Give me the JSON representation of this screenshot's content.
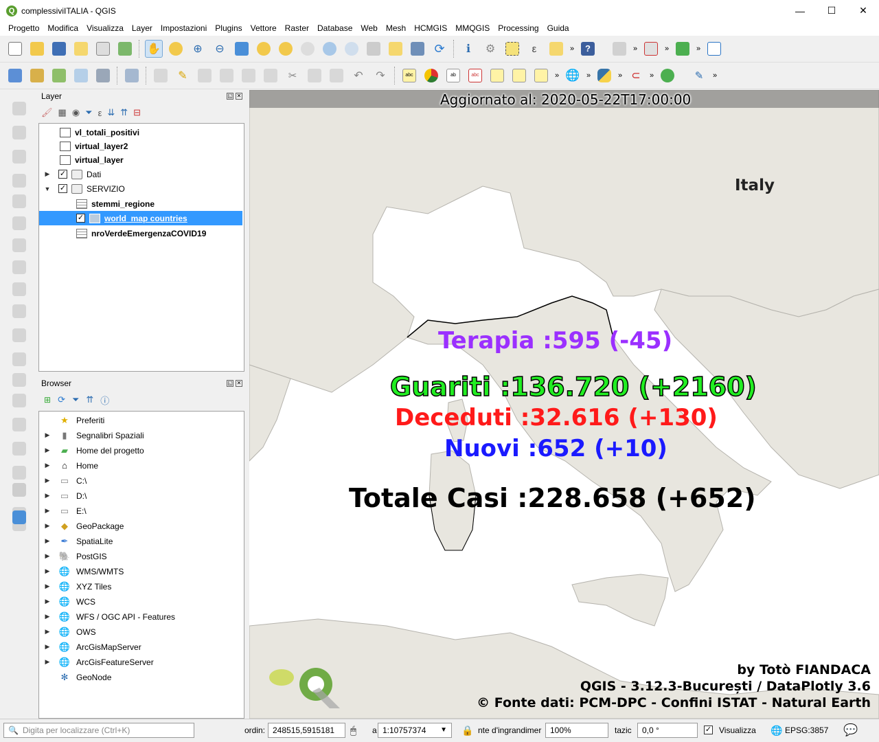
{
  "window": {
    "title": "complessiviITALIA - QGIS",
    "minimize": "—",
    "maximize": "☐",
    "close": "✕"
  },
  "menu": [
    "Progetto",
    "Modifica",
    "Visualizza",
    "Layer",
    "Impostazioni",
    "Plugins",
    "Vettore",
    "Raster",
    "Database",
    "Web",
    "Mesh",
    "HCMGIS",
    "MMQGIS",
    "Processing",
    "Guida"
  ],
  "layers_panel": {
    "title": "Layer",
    "rows": [
      {
        "name": "vl_totali_positivi",
        "checked": true
      },
      {
        "name": "virtual_layer2",
        "checked": true
      },
      {
        "name": "virtual_layer",
        "checked": true
      },
      {
        "name": "Dati",
        "checked": true
      },
      {
        "name": "SERVIZIO",
        "checked": true
      },
      {
        "name": "stemmi_regione"
      },
      {
        "name": "world_map countries",
        "checked": true
      },
      {
        "name": "nroVerdeEmergenzaCOVID19"
      }
    ]
  },
  "browser_panel": {
    "title": "Browser",
    "items": [
      "Preferiti",
      "Segnalibri Spaziali",
      "Home del progetto",
      "Home",
      "C:\\",
      "D:\\",
      "E:\\",
      "GeoPackage",
      "SpatiaLite",
      "PostGIS",
      "WMS/WMTS",
      "XYZ Tiles",
      "WCS",
      "WFS / OGC API - Features",
      "OWS",
      "ArcGisMapServer",
      "ArcGisFeatureServer",
      "GeoNode"
    ]
  },
  "map": {
    "updated": "Aggiornato al: 2020-05-22T17:00:00",
    "country_label": "Italy",
    "terapia": "Terapia :595 (-45)",
    "guariti": "Guariti :136.720 (+2160)",
    "deceduti": "Deceduti :32.616 (+130)",
    "nuovi": "Nuovi :652 (+10)",
    "totale": "Totale Casi :228.658 (+652)",
    "credit_author": "by Totò FIANDACA",
    "credit_software": "QGIS - 3.12.3-București / DataPlotly 3.6",
    "credit_source": "© Fonte dati: PCM-DPC - Confini ISTAT - Natural Earth",
    "colors": {
      "terapia": "#9b30ff",
      "guariti": "#22ee22",
      "deceduti": "#ff1a1a",
      "nuovi": "#1a1aff",
      "totale": "#000000",
      "land": "#e8e6df",
      "sea": "#ffffff"
    }
  },
  "statusbar": {
    "locator_placeholder": "Digita per localizzare (Ctrl+K)",
    "coord_label": "ordin:",
    "coord_value": "248515,5915181",
    "scale_label": "a",
    "scale_value": "1:10757374",
    "magnifier_label": "nte d'ingrandimer",
    "magnifier_value": "100%",
    "rotation_label": "tazic",
    "rotation_value": "0,0 °",
    "render_label": "Visualizza",
    "crs": "EPSG:3857"
  }
}
